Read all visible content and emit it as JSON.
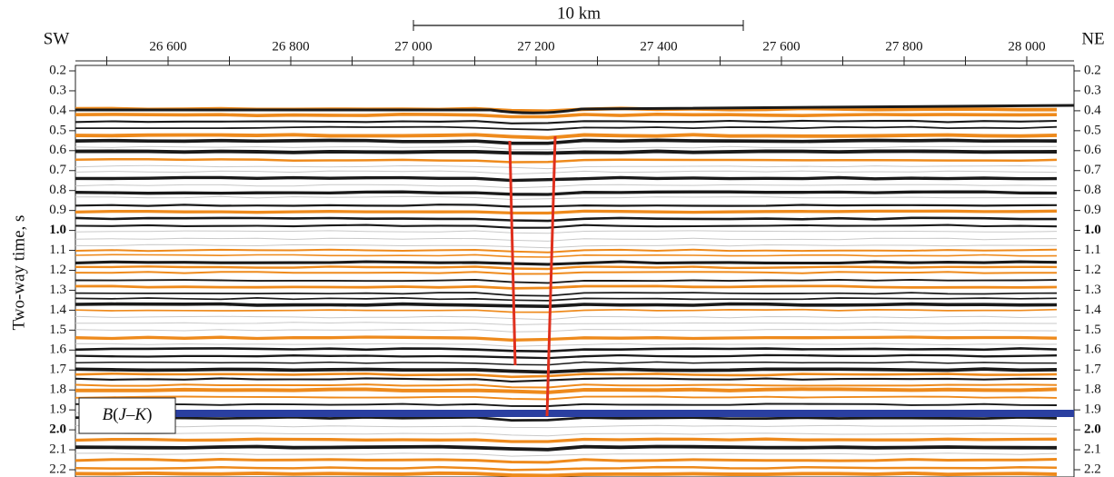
{
  "labels": {
    "left": "SW",
    "right": "NE",
    "scale_bar": "10 km",
    "y_axis": "Two-way time, s",
    "horizon": [
      "B",
      "(",
      "J",
      "–",
      "K",
      ")"
    ]
  },
  "x_ticks": [
    "26 600",
    "26 800",
    "27 000",
    "27 200",
    "27 400",
    "27 600",
    "27 800",
    "28 000"
  ],
  "y_ticks": [
    "0.2",
    "0.3",
    "0.4",
    "0.5",
    "0.6",
    "0.7",
    "0.8",
    "0.9",
    "1.0",
    "1.1",
    "1.2",
    "1.3",
    "1.4",
    "1.5",
    "1.6",
    "1.7",
    "1.8",
    "1.9",
    "2.0",
    "2.1",
    "2.2"
  ]
}
